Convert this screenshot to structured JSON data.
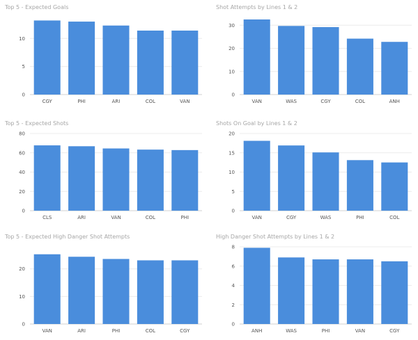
{
  "colors": {
    "bar": "#4a8ddc",
    "grid": "#ececec",
    "title": "#a6a6a6",
    "tick": "#555555"
  },
  "chart_data": [
    {
      "type": "bar",
      "title": "Top 5 - Expected Goals",
      "categories": [
        "CGY",
        "PHI",
        "ARI",
        "COL",
        "VAN"
      ],
      "values": [
        13.2,
        13.0,
        12.3,
        11.4,
        11.4
      ],
      "yticks": [
        0,
        5,
        10
      ],
      "ylim": [
        0,
        14
      ],
      "grid": true
    },
    {
      "type": "bar",
      "title": "Shot Attempts by Lines 1 & 2",
      "categories": [
        "VAN",
        "WAS",
        "CGY",
        "COL",
        "ANH"
      ],
      "values": [
        32.5,
        29.7,
        29.2,
        24.2,
        22.8
      ],
      "yticks": [
        0,
        10,
        20,
        30
      ],
      "ylim": [
        0,
        34
      ],
      "grid": true
    },
    {
      "type": "bar",
      "title": "Top 5 - Expected Shots",
      "categories": [
        "CLS",
        "ARI",
        "VAN",
        "COL",
        "PHI"
      ],
      "values": [
        67.7,
        66.8,
        64.5,
        63.3,
        62.8
      ],
      "yticks": [
        0,
        20,
        40,
        60,
        80
      ],
      "ylim": [
        0,
        80
      ],
      "grid": true
    },
    {
      "type": "bar",
      "title": "Shots On Goal by Lines 1 & 2",
      "categories": [
        "VAN",
        "CGY",
        "WAS",
        "PHI",
        "COL"
      ],
      "values": [
        18.1,
        16.9,
        15.1,
        13.1,
        12.5
      ],
      "yticks": [
        0,
        5,
        10,
        15,
        20
      ],
      "ylim": [
        0,
        20
      ],
      "grid": true
    },
    {
      "type": "bar",
      "title": "Top 5 - Expected High Danger Shot Attempts",
      "categories": [
        "VAN",
        "ARI",
        "PHI",
        "COL",
        "CGY"
      ],
      "values": [
        25.3,
        24.4,
        23.6,
        23.1,
        23.1
      ],
      "yticks": [
        0,
        10,
        20
      ],
      "ylim": [
        0,
        28
      ],
      "grid": true
    },
    {
      "type": "bar",
      "title": "High Danger Shot Attempts by Lines 1 & 2",
      "categories": [
        "ANH",
        "WAS",
        "PHI",
        "VAN",
        "CGY"
      ],
      "values": [
        7.9,
        6.9,
        6.7,
        6.7,
        6.5
      ],
      "yticks": [
        0,
        2,
        4,
        6,
        8
      ],
      "ylim": [
        0,
        8
      ],
      "grid": true
    }
  ]
}
